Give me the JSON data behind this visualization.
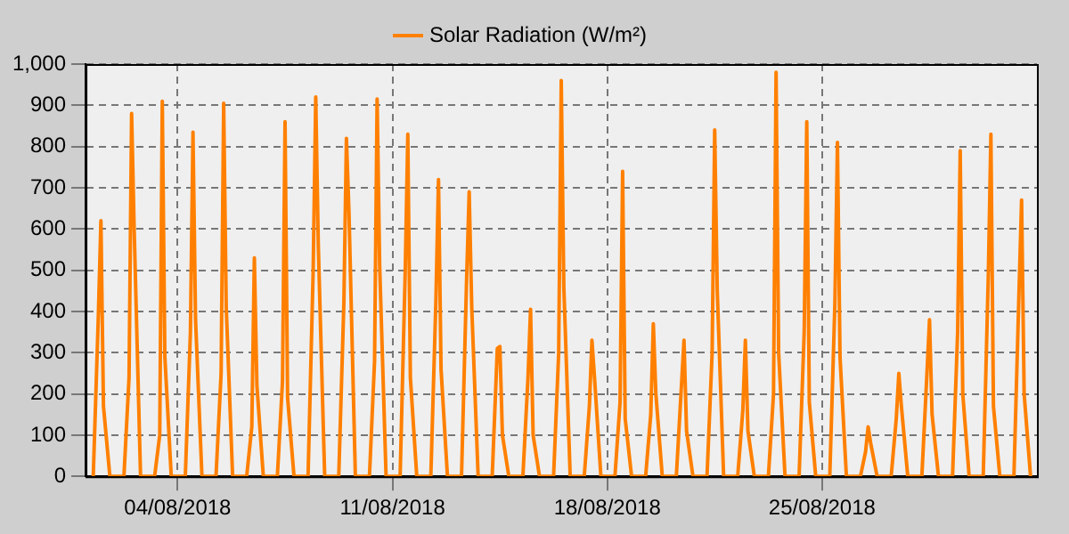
{
  "chart_data": {
    "type": "line",
    "legend": "top",
    "grid": true,
    "marker": "none",
    "line_style": "solid",
    "xlim": [
      "2018-08-01",
      "2018-09-01"
    ],
    "xticks": [
      {
        "value": "2018-08-04",
        "label": "04/08/2018"
      },
      {
        "value": "2018-08-11",
        "label": "11/08/2018"
      },
      {
        "value": "2018-08-18",
        "label": "18/08/2018"
      },
      {
        "value": "2018-08-25",
        "label": "25/08/2018"
      }
    ],
    "ylim": [
      0,
      1000
    ],
    "yticks": [
      0,
      100,
      200,
      300,
      400,
      500,
      600,
      700,
      800,
      900,
      {
        "value": 1000,
        "label": "1,000"
      }
    ],
    "x": [
      "2018-08-01T06:00",
      "2018-08-01T10:00",
      "2018-08-01T12:00",
      "2018-08-01T14:00",
      "2018-08-01T19:00",
      "2018-08-02T06:00",
      "2018-08-02T10:00",
      "2018-08-02T12:00",
      "2018-08-02T14:00",
      "2018-08-02T19:00",
      "2018-08-03T06:00",
      "2018-08-03T10:00",
      "2018-08-03T12:00",
      "2018-08-03T14:00",
      "2018-08-03T19:00",
      "2018-08-04T06:00",
      "2018-08-04T10:00",
      "2018-08-04T12:00",
      "2018-08-04T14:00",
      "2018-08-04T19:00",
      "2018-08-05T06:00",
      "2018-08-05T10:00",
      "2018-08-05T12:00",
      "2018-08-05T14:00",
      "2018-08-05T19:00",
      "2018-08-06T06:00",
      "2018-08-06T10:00",
      "2018-08-06T12:00",
      "2018-08-06T14:00",
      "2018-08-06T19:00",
      "2018-08-07T06:00",
      "2018-08-07T10:00",
      "2018-08-07T12:00",
      "2018-08-07T14:00",
      "2018-08-07T19:00",
      "2018-08-08T06:00",
      "2018-08-08T10:00",
      "2018-08-08T12:00",
      "2018-08-08T14:00",
      "2018-08-08T19:00",
      "2018-08-09T06:00",
      "2018-08-09T10:00",
      "2018-08-09T12:00",
      "2018-08-09T14:00",
      "2018-08-09T19:00",
      "2018-08-10T06:00",
      "2018-08-10T10:00",
      "2018-08-10T12:00",
      "2018-08-10T14:00",
      "2018-08-10T19:00",
      "2018-08-11T06:00",
      "2018-08-11T10:00",
      "2018-08-11T12:00",
      "2018-08-11T14:00",
      "2018-08-11T19:00",
      "2018-08-12T06:00",
      "2018-08-12T10:00",
      "2018-08-12T12:00",
      "2018-08-12T14:00",
      "2018-08-12T19:00",
      "2018-08-13T06:00",
      "2018-08-13T10:00",
      "2018-08-13T12:00",
      "2018-08-13T14:00",
      "2018-08-13T19:00",
      "2018-08-14T06:00",
      "2018-08-14T10:00",
      "2018-08-14T12:00",
      "2018-08-14T14:00",
      "2018-08-14T19:00",
      "2018-08-15T06:00",
      "2018-08-15T10:00",
      "2018-08-15T12:00",
      "2018-08-15T14:00",
      "2018-08-15T19:00",
      "2018-08-16T06:00",
      "2018-08-16T10:00",
      "2018-08-16T12:00",
      "2018-08-16T14:00",
      "2018-08-16T19:00",
      "2018-08-17T06:00",
      "2018-08-17T10:00",
      "2018-08-17T12:00",
      "2018-08-17T14:00",
      "2018-08-17T19:00",
      "2018-08-18T06:00",
      "2018-08-18T10:00",
      "2018-08-18T12:00",
      "2018-08-18T14:00",
      "2018-08-18T19:00",
      "2018-08-19T06:00",
      "2018-08-19T10:00",
      "2018-08-19T12:00",
      "2018-08-19T14:00",
      "2018-08-19T19:00",
      "2018-08-20T06:00",
      "2018-08-20T10:00",
      "2018-08-20T12:00",
      "2018-08-20T14:00",
      "2018-08-20T19:00",
      "2018-08-21T06:00",
      "2018-08-21T10:00",
      "2018-08-21T12:00",
      "2018-08-21T14:00",
      "2018-08-21T19:00",
      "2018-08-22T06:00",
      "2018-08-22T10:00",
      "2018-08-22T12:00",
      "2018-08-22T14:00",
      "2018-08-22T19:00",
      "2018-08-23T06:00",
      "2018-08-23T10:00",
      "2018-08-23T12:00",
      "2018-08-23T14:00",
      "2018-08-23T19:00",
      "2018-08-24T06:00",
      "2018-08-24T10:00",
      "2018-08-24T12:00",
      "2018-08-24T14:00",
      "2018-08-24T19:00",
      "2018-08-25T06:00",
      "2018-08-25T10:00",
      "2018-08-25T12:00",
      "2018-08-25T14:00",
      "2018-08-25T19:00",
      "2018-08-26T06:00",
      "2018-08-26T10:00",
      "2018-08-26T12:00",
      "2018-08-26T14:00",
      "2018-08-26T19:00",
      "2018-08-27T06:00",
      "2018-08-27T10:00",
      "2018-08-27T12:00",
      "2018-08-27T14:00",
      "2018-08-27T19:00",
      "2018-08-28T06:00",
      "2018-08-28T10:00",
      "2018-08-28T12:00",
      "2018-08-28T14:00",
      "2018-08-28T19:00",
      "2018-08-29T06:00",
      "2018-08-29T10:00",
      "2018-08-29T12:00",
      "2018-08-29T14:00",
      "2018-08-29T19:00",
      "2018-08-30T06:00",
      "2018-08-30T10:00",
      "2018-08-30T12:00",
      "2018-08-30T14:00",
      "2018-08-30T19:00",
      "2018-08-31T06:00",
      "2018-08-31T10:00",
      "2018-08-31T12:00",
      "2018-08-31T14:00",
      "2018-08-31T19:00"
    ],
    "series": [
      {
        "name": "Solar Radiation (W/m²)",
        "color": "#ff8000",
        "values": [
          0,
          390,
          620,
          170,
          0,
          0,
          240,
          880,
          600,
          0,
          0,
          100,
          910,
          290,
          0,
          0,
          350,
          835,
          380,
          0,
          0,
          250,
          905,
          410,
          0,
          0,
          120,
          530,
          220,
          0,
          0,
          230,
          860,
          190,
          0,
          0,
          500,
          920,
          560,
          0,
          0,
          420,
          820,
          640,
          0,
          0,
          280,
          915,
          510,
          0,
          0,
          500,
          830,
          240,
          0,
          0,
          430,
          720,
          260,
          0,
          0,
          480,
          690,
          410,
          0,
          0,
          310,
          315,
          100,
          0,
          0,
          240,
          405,
          100,
          0,
          0,
          300,
          960,
          460,
          0,
          0,
          170,
          330,
          240,
          0,
          0,
          180,
          740,
          140,
          0,
          0,
          150,
          370,
          200,
          0,
          0,
          220,
          330,
          110,
          0,
          0,
          300,
          840,
          450,
          0,
          0,
          160,
          330,
          110,
          0,
          0,
          200,
          980,
          300,
          0,
          0,
          350,
          860,
          180,
          0,
          0,
          420,
          810,
          290,
          0,
          0,
          60,
          120,
          80,
          0,
          0,
          140,
          250,
          170,
          0,
          0,
          250,
          380,
          150,
          0,
          0,
          350,
          790,
          200,
          0,
          0,
          490,
          830,
          170,
          0,
          0,
          450,
          670,
          200,
          0
        ]
      }
    ]
  }
}
